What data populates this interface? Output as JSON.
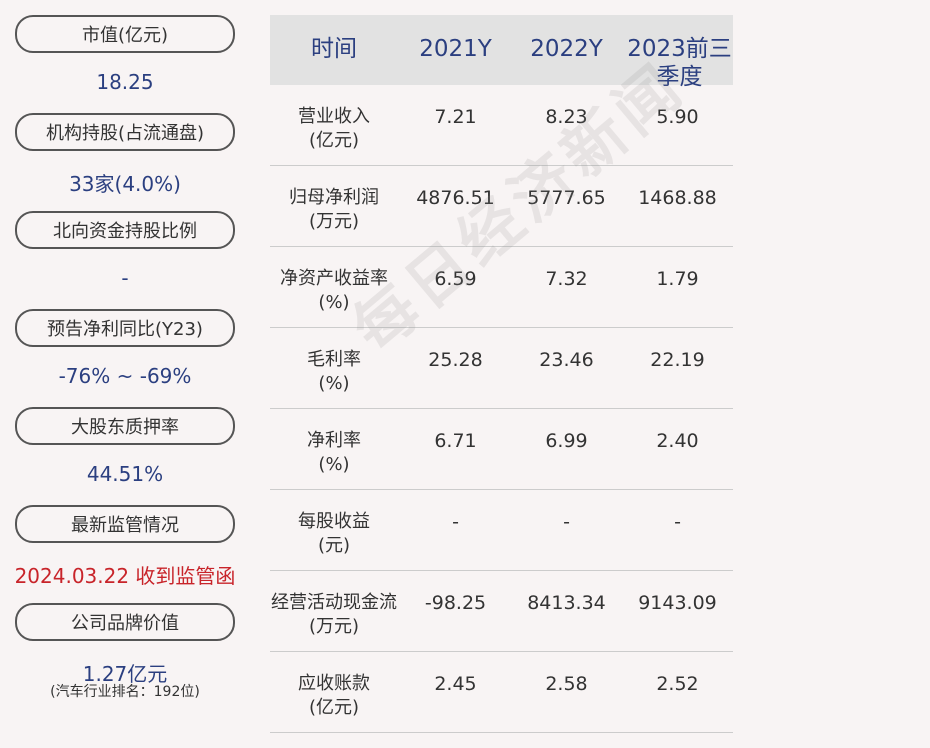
{
  "left_panel": {
    "items": [
      {
        "label": "市值(亿元)",
        "value": "18.25"
      },
      {
        "label": "机构持股(占流通盘)",
        "value": "33家(4.0%)"
      },
      {
        "label": "北向资金持股比例",
        "value": "-"
      },
      {
        "label": "预告净利同比(Y23)",
        "value": "-76% ~ -69%"
      },
      {
        "label": "大股东质押率",
        "value": "44.51%"
      },
      {
        "label": "最新监管情况",
        "value": "2024.03.22 收到监管函"
      },
      {
        "label": "公司品牌价值",
        "value": "1.27亿元",
        "note": "(汽车行业排名：192位)"
      }
    ],
    "alert_color": "#c8242a",
    "value_color": "#2b3f80"
  },
  "table": {
    "headers": [
      "时间",
      "2021Y",
      "2022Y",
      "2023前三季度"
    ],
    "rows": [
      {
        "metric": "营业收入",
        "unit": "(亿元)",
        "values": [
          "7.21",
          "8.23",
          "5.90"
        ]
      },
      {
        "metric": "归母净利润",
        "unit": "(万元)",
        "values": [
          "4876.51",
          "5777.65",
          "1468.88"
        ]
      },
      {
        "metric": "净资产收益率",
        "unit": "(%)",
        "values": [
          "6.59",
          "7.32",
          "1.79"
        ]
      },
      {
        "metric": "毛利率",
        "unit": "(%)",
        "values": [
          "25.28",
          "23.46",
          "22.19"
        ]
      },
      {
        "metric": "净利率",
        "unit": "(%)",
        "values": [
          "6.71",
          "6.99",
          "2.40"
        ]
      },
      {
        "metric": "每股收益",
        "unit": "(元)",
        "values": [
          "-",
          "-",
          "-"
        ]
      },
      {
        "metric": "经营活动现金流",
        "unit": "(万元)",
        "values": [
          "-98.25",
          "8413.34",
          "9143.09"
        ]
      },
      {
        "metric": "应收账款",
        "unit": "(亿元)",
        "values": [
          "2.45",
          "2.58",
          "2.52"
        ]
      }
    ]
  },
  "watermark": "每日经济新闻"
}
